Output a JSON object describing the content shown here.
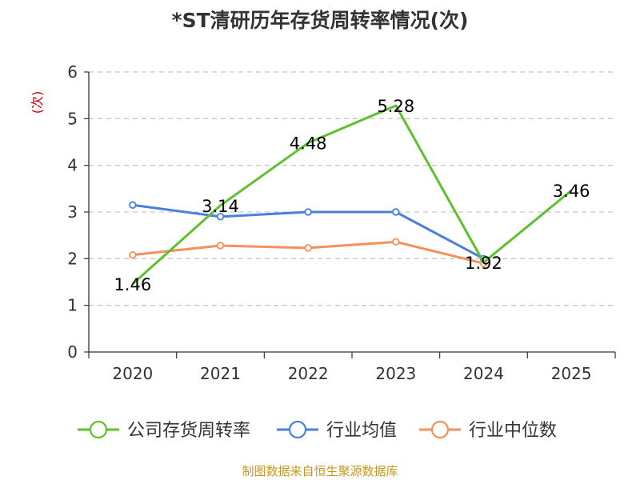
{
  "source_note": "制图数据来自恒生聚源数据库",
  "chart_data": {
    "type": "line",
    "title": "*ST清研历年存货周转率情况(次)",
    "ylabel": "(次)",
    "categories": [
      "2020",
      "2021",
      "2022",
      "2023",
      "2024",
      "2025"
    ],
    "ylim": [
      0,
      6
    ],
    "yticks": [
      0,
      1,
      2,
      3,
      4,
      5,
      6
    ],
    "grid": true,
    "legend_position": "bottom",
    "series": [
      {
        "name": "公司存货周转率",
        "color": "#5cc12d",
        "values": [
          1.46,
          3.14,
          4.48,
          5.28,
          1.92,
          3.46
        ],
        "data_labels": [
          "1.46",
          "3.14",
          "4.48",
          "5.28",
          "1.92",
          "3.46"
        ],
        "markers": false
      },
      {
        "name": "行业均值",
        "color": "#4a7fdc",
        "values": [
          3.15,
          2.9,
          3.0,
          3.0,
          2.0,
          null
        ],
        "markers": true
      },
      {
        "name": "行业中位数",
        "color": "#f78f5b",
        "values": [
          2.08,
          2.28,
          2.23,
          2.36,
          1.9,
          null
        ],
        "markers": true
      }
    ]
  }
}
